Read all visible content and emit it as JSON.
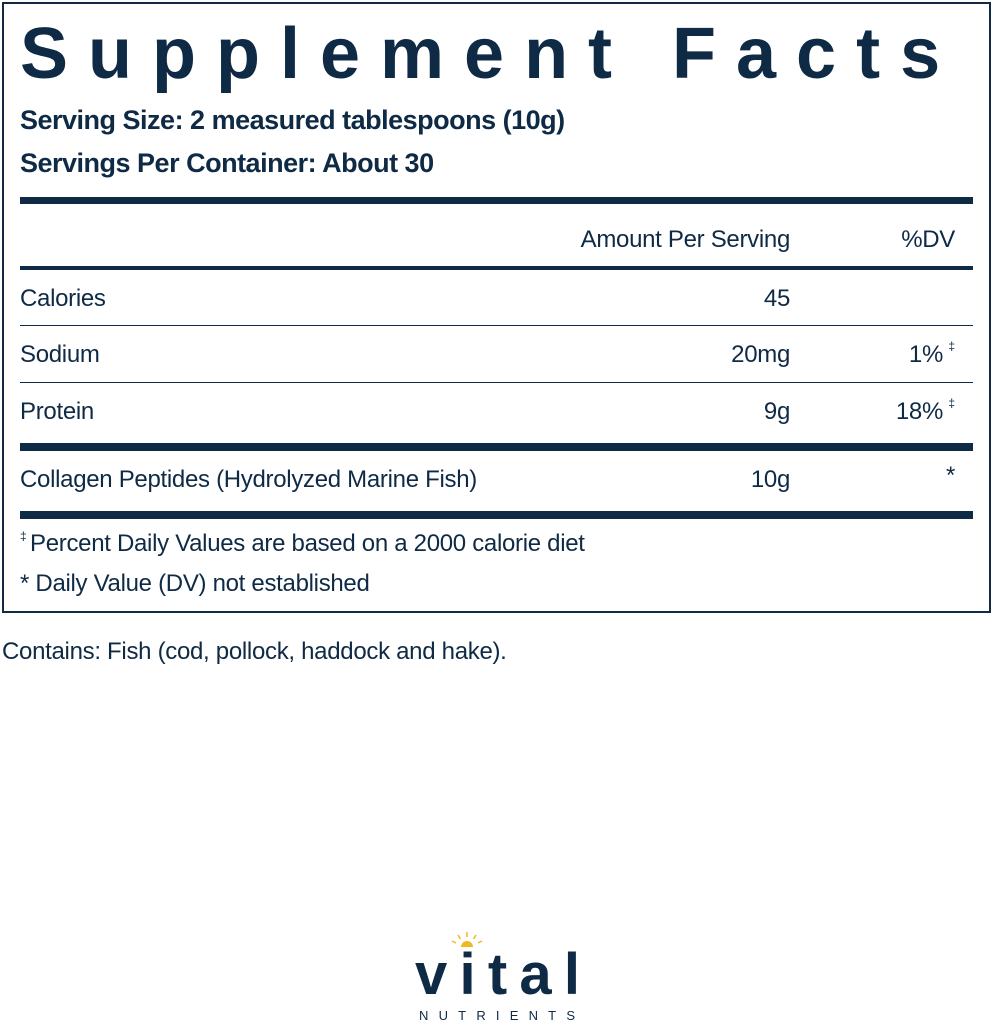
{
  "title": "Supplement Facts",
  "serving_size": "Serving Size: 2 measured tablespoons (10g)",
  "servings_per_container": "Servings Per Container: About 30",
  "header": {
    "amount": "Amount Per Serving",
    "dv": "%DV"
  },
  "rows": [
    {
      "name": "Calories",
      "amount": "45",
      "dv": "",
      "mark": ""
    },
    {
      "name": "Sodium",
      "amount": "20mg",
      "dv": "1%",
      "mark": "‡"
    },
    {
      "name": "Protein",
      "amount": "9g",
      "dv": "18%",
      "mark": "‡"
    },
    {
      "name": "Collagen Peptides (Hydrolyzed Marine Fish)",
      "amount": "10g",
      "dv": "*",
      "mark": ""
    }
  ],
  "footnotes": {
    "mark1": "‡",
    "note1": " Percent Daily Values are based on a 2000 calorie diet",
    "note2": "* Daily Value (DV) not established"
  },
  "contains": "Contains: Fish (cod, pollock, haddock and hake).",
  "logo": {
    "brand": "vital",
    "sub": "NUTRIENTS",
    "colors": {
      "navy": "#0f2a45",
      "sun": "#f2b820"
    }
  }
}
